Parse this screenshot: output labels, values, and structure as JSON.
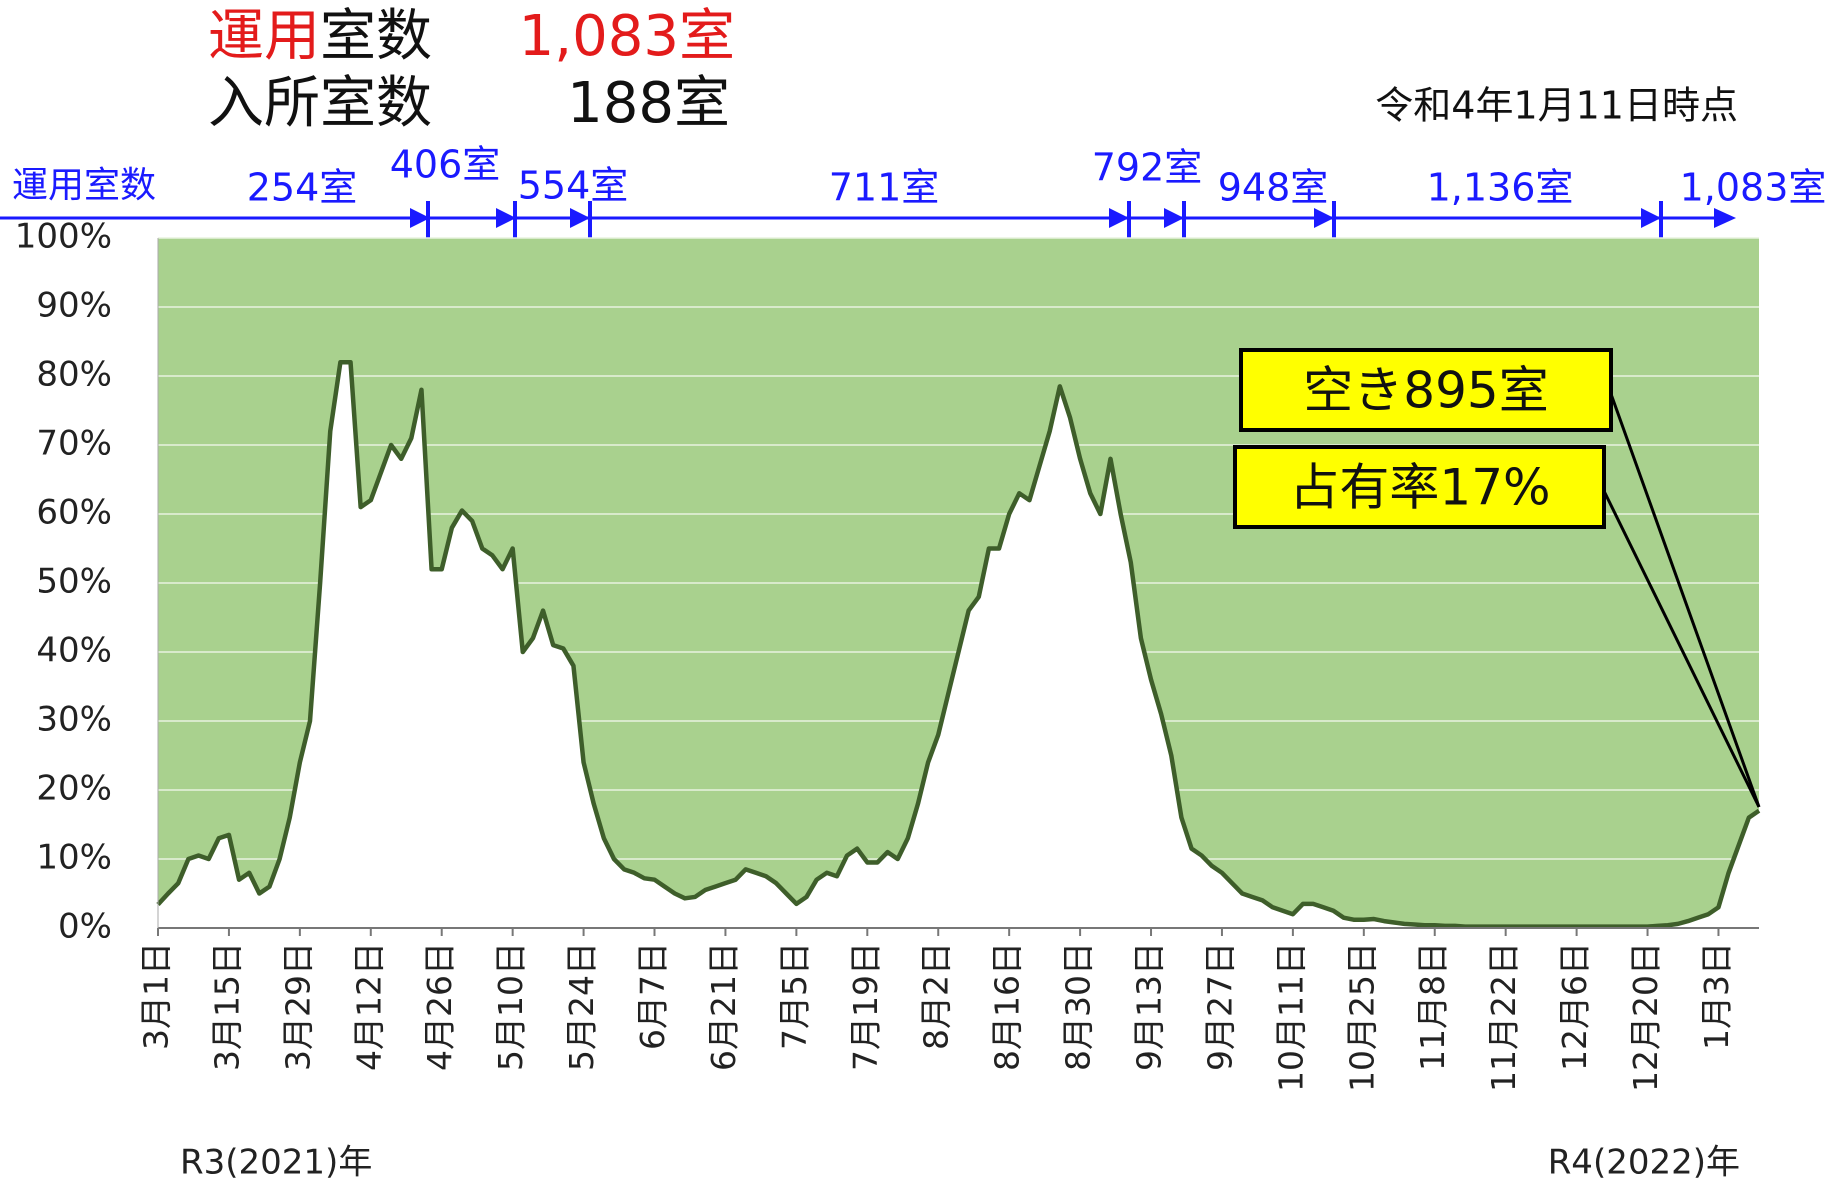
{
  "chart_data": {
    "type": "area",
    "header": {
      "operating_red": "運用",
      "operating_label": "室数",
      "operating_value": "1,083室",
      "occupied_label": "入所室数",
      "occupied_value": "188室"
    },
    "as_of": "令和4年1月11日時点",
    "capacity_axis_label": "運用室数",
    "capacity_labels": [
      "254室",
      "406室",
      "554室",
      "711室",
      "792室",
      "948室",
      "1,136室",
      "1,083室"
    ],
    "annotations": [
      "空き895室",
      "占有率17%"
    ],
    "year_labels": [
      "R3(2021)年",
      "R4(2022)年"
    ],
    "categories": [
      "3月1日",
      null,
      null,
      null,
      null,
      null,
      null,
      "3月15日",
      null,
      null,
      null,
      null,
      null,
      null,
      "3月29日",
      null,
      null,
      null,
      null,
      null,
      null,
      "4月12日",
      null,
      null,
      null,
      null,
      null,
      null,
      "4月26日",
      null,
      null,
      null,
      null,
      null,
      null,
      "5月10日",
      null,
      null,
      null,
      null,
      null,
      null,
      "5月24日",
      null,
      null,
      null,
      null,
      null,
      null,
      "6月7日",
      null,
      null,
      null,
      null,
      null,
      null,
      "6月21日",
      null,
      null,
      null,
      null,
      null,
      null,
      "7月5日",
      null,
      null,
      null,
      null,
      null,
      null,
      "7月19日",
      null,
      null,
      null,
      null,
      null,
      null,
      "8月2日",
      null,
      null,
      null,
      null,
      null,
      null,
      "8月16日",
      null,
      null,
      null,
      null,
      null,
      null,
      "8月30日",
      null,
      null,
      null,
      null,
      null,
      null,
      "9月13日",
      null,
      null,
      null,
      null,
      null,
      null,
      "9月27日",
      null,
      null,
      null,
      null,
      null,
      null,
      "10月11日",
      null,
      null,
      null,
      null,
      null,
      null,
      "10月25日",
      null,
      null,
      null,
      null,
      null,
      null,
      "11月8日",
      null,
      null,
      null,
      null,
      null,
      null,
      "11月22日",
      null,
      null,
      null,
      null,
      null,
      null,
      "12月6日",
      null,
      null,
      null,
      null,
      null,
      null,
      "12月20日",
      null,
      null,
      null,
      null,
      null,
      null,
      "1月3日",
      null,
      null,
      null,
      null
    ],
    "values": [
      3.4,
      5,
      6.5,
      10,
      10.5,
      10,
      13,
      13.5,
      7,
      8,
      5,
      6,
      10,
      16,
      24,
      30,
      50,
      72,
      82,
      82,
      61,
      62,
      66,
      70,
      68,
      71,
      78,
      52,
      52,
      58,
      60.5,
      59,
      55,
      54,
      52,
      55,
      40,
      42,
      46,
      41,
      40.5,
      38,
      24,
      18,
      13,
      10,
      8.5,
      8,
      7.2,
      7,
      6,
      5,
      4.3,
      4.5,
      5.5,
      6,
      6.5,
      7,
      8.5,
      8,
      7.5,
      6.5,
      5,
      3.5,
      4.5,
      7,
      8,
      7.5,
      10.5,
      11.5,
      9.5,
      9.5,
      11,
      10,
      13,
      18,
      24,
      28,
      34,
      40,
      46,
      48,
      55,
      55,
      60,
      63,
      62,
      67,
      72,
      78.5,
      74,
      68,
      63,
      60,
      68,
      60,
      53,
      42,
      36,
      31,
      25,
      16,
      11.5,
      10.5,
      9,
      8,
      6.5,
      5,
      4.5,
      4,
      3,
      2.5,
      2,
      3.5,
      3.5,
      3,
      2.5,
      1.5,
      1.2,
      1.2,
      1.3,
      1,
      0.8,
      0.6,
      0.5,
      0.4,
      0.4,
      0.3,
      0.3,
      0.2,
      0.2,
      0.2,
      0.2,
      0.2,
      0.2,
      0.2,
      0.2,
      0.2,
      0.2,
      0.2,
      0.2,
      0.2,
      0.2,
      0.2,
      0.2,
      0.2,
      0.2,
      0.2,
      0.3,
      0.4,
      0.6,
      1,
      1.5,
      2,
      3,
      8,
      12,
      16,
      17
    ],
    "color": "#3e5e2a",
    "fill_color": "#a9d18e",
    "ylim": [
      0,
      100
    ],
    "yticks": [
      {
        "value": 0,
        "label": "0%"
      },
      {
        "value": 10,
        "label": "10%"
      },
      {
        "value": 20,
        "label": "20%"
      },
      {
        "value": 30,
        "label": "30%"
      },
      {
        "value": 40,
        "label": "40%"
      },
      {
        "value": 50,
        "label": "50%"
      },
      {
        "value": 60,
        "label": "60%"
      },
      {
        "value": 70,
        "label": "70%"
      },
      {
        "value": 80,
        "label": "80%"
      },
      {
        "value": 90,
        "label": "90%"
      },
      {
        "value": 100,
        "label": "100%"
      }
    ],
    "grid": true
  }
}
